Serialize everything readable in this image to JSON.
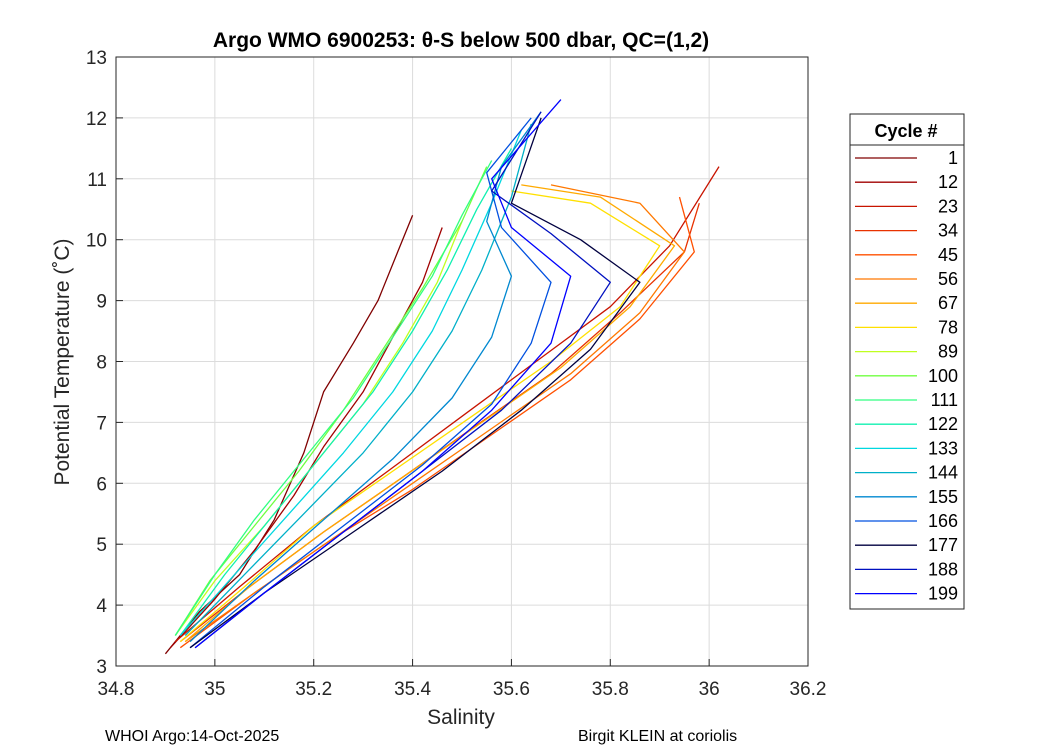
{
  "chart_data": {
    "type": "line",
    "title": "Argo WMO 6900253: θ-S below 500 dbar,  QC=(1,2)",
    "xlabel": "Salinity",
    "ylabel": "Potential Temperature (˚C)",
    "xlim": [
      34.8,
      36.2
    ],
    "ylim": [
      3,
      13
    ],
    "xticks": [
      34.8,
      35,
      35.2,
      35.4,
      35.6,
      35.8,
      36,
      36.2
    ],
    "xtick_labels": [
      "34.8",
      "35",
      "35.2",
      "35.4",
      "35.6",
      "35.8",
      "36",
      "36.2"
    ],
    "yticks": [
      3,
      4,
      5,
      6,
      7,
      8,
      9,
      10,
      11,
      12,
      13
    ],
    "ytick_labels": [
      "3",
      "4",
      "5",
      "6",
      "7",
      "8",
      "9",
      "10",
      "11",
      "12",
      "13"
    ],
    "grid": true,
    "legend": {
      "title": "Cycle #",
      "position": "right",
      "entries": [
        {
          "label": "1",
          "color": "#800000"
        },
        {
          "label": "12",
          "color": "#a00000"
        },
        {
          "label": "23",
          "color": "#c81400"
        },
        {
          "label": "34",
          "color": "#e83200"
        },
        {
          "label": "45",
          "color": "#ff5000"
        },
        {
          "label": "56",
          "color": "#ff7800"
        },
        {
          "label": "67",
          "color": "#ffaa00"
        },
        {
          "label": "78",
          "color": "#ffe000"
        },
        {
          "label": "89",
          "color": "#c0ff20"
        },
        {
          "label": "100",
          "color": "#70ff40"
        },
        {
          "label": "111",
          "color": "#30ff80"
        },
        {
          "label": "122",
          "color": "#10f0b0"
        },
        {
          "label": "133",
          "color": "#00d8e0"
        },
        {
          "label": "144",
          "color": "#00b0c8"
        },
        {
          "label": "155",
          "color": "#0088d0"
        },
        {
          "label": "166",
          "color": "#0050e0"
        },
        {
          "label": "177",
          "color": "#000040"
        },
        {
          "label": "188",
          "color": "#0010c0"
        },
        {
          "label": "199",
          "color": "#0000ff"
        }
      ]
    },
    "series": [
      {
        "name": "1",
        "color": "#800000",
        "s": [
          34.9,
          34.97,
          35.05,
          35.12,
          35.18,
          35.22,
          35.28,
          35.33,
          35.37,
          35.4
        ],
        "t": [
          3.2,
          3.9,
          4.5,
          5.4,
          6.5,
          7.5,
          8.3,
          9.0,
          9.8,
          10.4
        ]
      },
      {
        "name": "12",
        "color": "#a00000",
        "s": [
          34.91,
          35.0,
          35.08,
          35.16,
          35.22,
          35.3,
          35.36,
          35.42,
          35.46
        ],
        "t": [
          3.3,
          4.1,
          4.9,
          5.8,
          6.6,
          7.5,
          8.4,
          9.3,
          10.2
        ]
      },
      {
        "name": "23",
        "color": "#c81400",
        "s": [
          34.92,
          35.05,
          35.2,
          35.35,
          35.5,
          35.65,
          35.8,
          35.92,
          36.02
        ],
        "t": [
          3.4,
          4.3,
          5.3,
          6.2,
          7.1,
          8.0,
          8.9,
          9.9,
          11.2
        ]
      },
      {
        "name": "34",
        "color": "#e83200",
        "s": [
          34.93,
          35.07,
          35.22,
          35.38,
          35.52,
          35.68,
          35.82,
          35.95,
          35.98
        ],
        "t": [
          3.4,
          4.3,
          5.2,
          6.1,
          6.9,
          7.8,
          8.8,
          9.8,
          10.6
        ]
      },
      {
        "name": "45",
        "color": "#ff5000",
        "s": [
          34.93,
          35.08,
          35.24,
          35.4,
          35.56,
          35.72,
          35.86,
          35.97,
          35.94
        ],
        "t": [
          3.3,
          4.2,
          5.1,
          5.9,
          6.8,
          7.7,
          8.7,
          9.8,
          10.7
        ]
      },
      {
        "name": "56",
        "color": "#ff7800",
        "s": [
          34.94,
          35.08,
          35.24,
          35.4,
          35.56,
          35.72,
          35.86,
          35.95,
          35.86,
          35.68
        ],
        "t": [
          3.4,
          4.2,
          5.1,
          6.0,
          6.9,
          7.8,
          8.8,
          9.8,
          10.6,
          10.9
        ]
      },
      {
        "name": "67",
        "color": "#ffaa00",
        "s": [
          34.94,
          35.07,
          35.22,
          35.38,
          35.54,
          35.7,
          35.84,
          35.93,
          35.78,
          35.62
        ],
        "t": [
          3.4,
          4.3,
          5.2,
          6.1,
          7.0,
          7.9,
          8.9,
          9.9,
          10.7,
          10.9
        ]
      },
      {
        "name": "78",
        "color": "#ffe000",
        "s": [
          34.93,
          35.06,
          35.2,
          35.36,
          35.52,
          35.68,
          35.82,
          35.9,
          35.76,
          35.6
        ],
        "t": [
          3.4,
          4.3,
          5.3,
          6.2,
          7.1,
          8.0,
          8.9,
          9.9,
          10.6,
          10.8
        ]
      },
      {
        "name": "89",
        "color": "#c0ff20",
        "s": [
          34.92,
          35.0,
          35.1,
          35.2,
          35.3,
          35.38,
          35.45,
          35.5
        ],
        "t": [
          3.5,
          4.4,
          5.3,
          6.3,
          7.3,
          8.3,
          9.3,
          10.3
        ]
      },
      {
        "name": "100",
        "color": "#70ff40",
        "s": [
          34.92,
          34.99,
          35.08,
          35.17,
          35.26,
          35.34,
          35.42,
          35.5,
          35.55
        ],
        "t": [
          3.5,
          4.4,
          5.3,
          6.2,
          7.2,
          8.2,
          9.2,
          10.3,
          11.2
        ]
      },
      {
        "name": "111",
        "color": "#30ff80",
        "s": [
          34.92,
          35.0,
          35.08,
          35.18,
          35.28,
          35.36,
          35.44,
          35.5,
          35.56
        ],
        "t": [
          3.5,
          4.5,
          5.4,
          6.4,
          7.4,
          8.4,
          9.4,
          10.4,
          11.3
        ]
      },
      {
        "name": "122",
        "color": "#10f0b0",
        "s": [
          34.93,
          35.02,
          35.12,
          35.22,
          35.32,
          35.4,
          35.47,
          35.53,
          35.6
        ],
        "t": [
          3.5,
          4.5,
          5.5,
          6.5,
          7.5,
          8.5,
          9.5,
          10.5,
          11.5
        ]
      },
      {
        "name": "133",
        "color": "#00d8e0",
        "s": [
          34.93,
          35.04,
          35.15,
          35.26,
          35.36,
          35.44,
          35.5,
          35.56,
          35.62
        ],
        "t": [
          3.5,
          4.5,
          5.5,
          6.5,
          7.5,
          8.5,
          9.5,
          10.6,
          11.8
        ]
      },
      {
        "name": "144",
        "color": "#00b0c8",
        "s": [
          34.94,
          35.06,
          35.18,
          35.3,
          35.4,
          35.48,
          35.54,
          35.6,
          35.64
        ],
        "t": [
          3.5,
          4.5,
          5.5,
          6.5,
          7.5,
          8.5,
          9.5,
          10.7,
          11.9
        ]
      },
      {
        "name": "155",
        "color": "#0088d0",
        "s": [
          34.95,
          35.08,
          35.22,
          35.36,
          35.48,
          35.56,
          35.6,
          35.55,
          35.58,
          35.66
        ],
        "t": [
          3.4,
          4.4,
          5.4,
          6.4,
          7.4,
          8.4,
          9.4,
          10.3,
          11.2,
          12.1
        ]
      },
      {
        "name": "166",
        "color": "#0050e0",
        "s": [
          34.95,
          35.1,
          35.26,
          35.42,
          35.56,
          35.64,
          35.68,
          35.58,
          35.55,
          35.64
        ],
        "t": [
          3.3,
          4.3,
          5.3,
          6.3,
          7.3,
          8.3,
          9.3,
          10.2,
          11.1,
          12.0
        ]
      },
      {
        "name": "177",
        "color": "#000040",
        "s": [
          34.95,
          35.1,
          35.28,
          35.46,
          35.62,
          35.76,
          35.86,
          35.74,
          35.6,
          35.66
        ],
        "t": [
          3.3,
          4.2,
          5.2,
          6.2,
          7.2,
          8.2,
          9.3,
          10.0,
          10.6,
          12.0
        ]
      },
      {
        "name": "188",
        "color": "#0010c0",
        "s": [
          34.96,
          35.1,
          35.26,
          35.42,
          35.58,
          35.72,
          35.8,
          35.68,
          35.56,
          35.66
        ],
        "t": [
          3.3,
          4.2,
          5.2,
          6.2,
          7.2,
          8.3,
          9.3,
          10.1,
          10.8,
          12.1
        ]
      },
      {
        "name": "199",
        "color": "#0000ff",
        "s": [
          34.96,
          35.1,
          35.26,
          35.42,
          35.56,
          35.68,
          35.72,
          35.6,
          35.56,
          35.7
        ],
        "t": [
          3.3,
          4.2,
          5.2,
          6.2,
          7.2,
          8.3,
          9.4,
          10.2,
          11.0,
          12.3
        ]
      }
    ]
  },
  "footer": {
    "left": "WHOI Argo:14-Oct-2025",
    "right": "Birgit KLEIN at coriolis"
  }
}
